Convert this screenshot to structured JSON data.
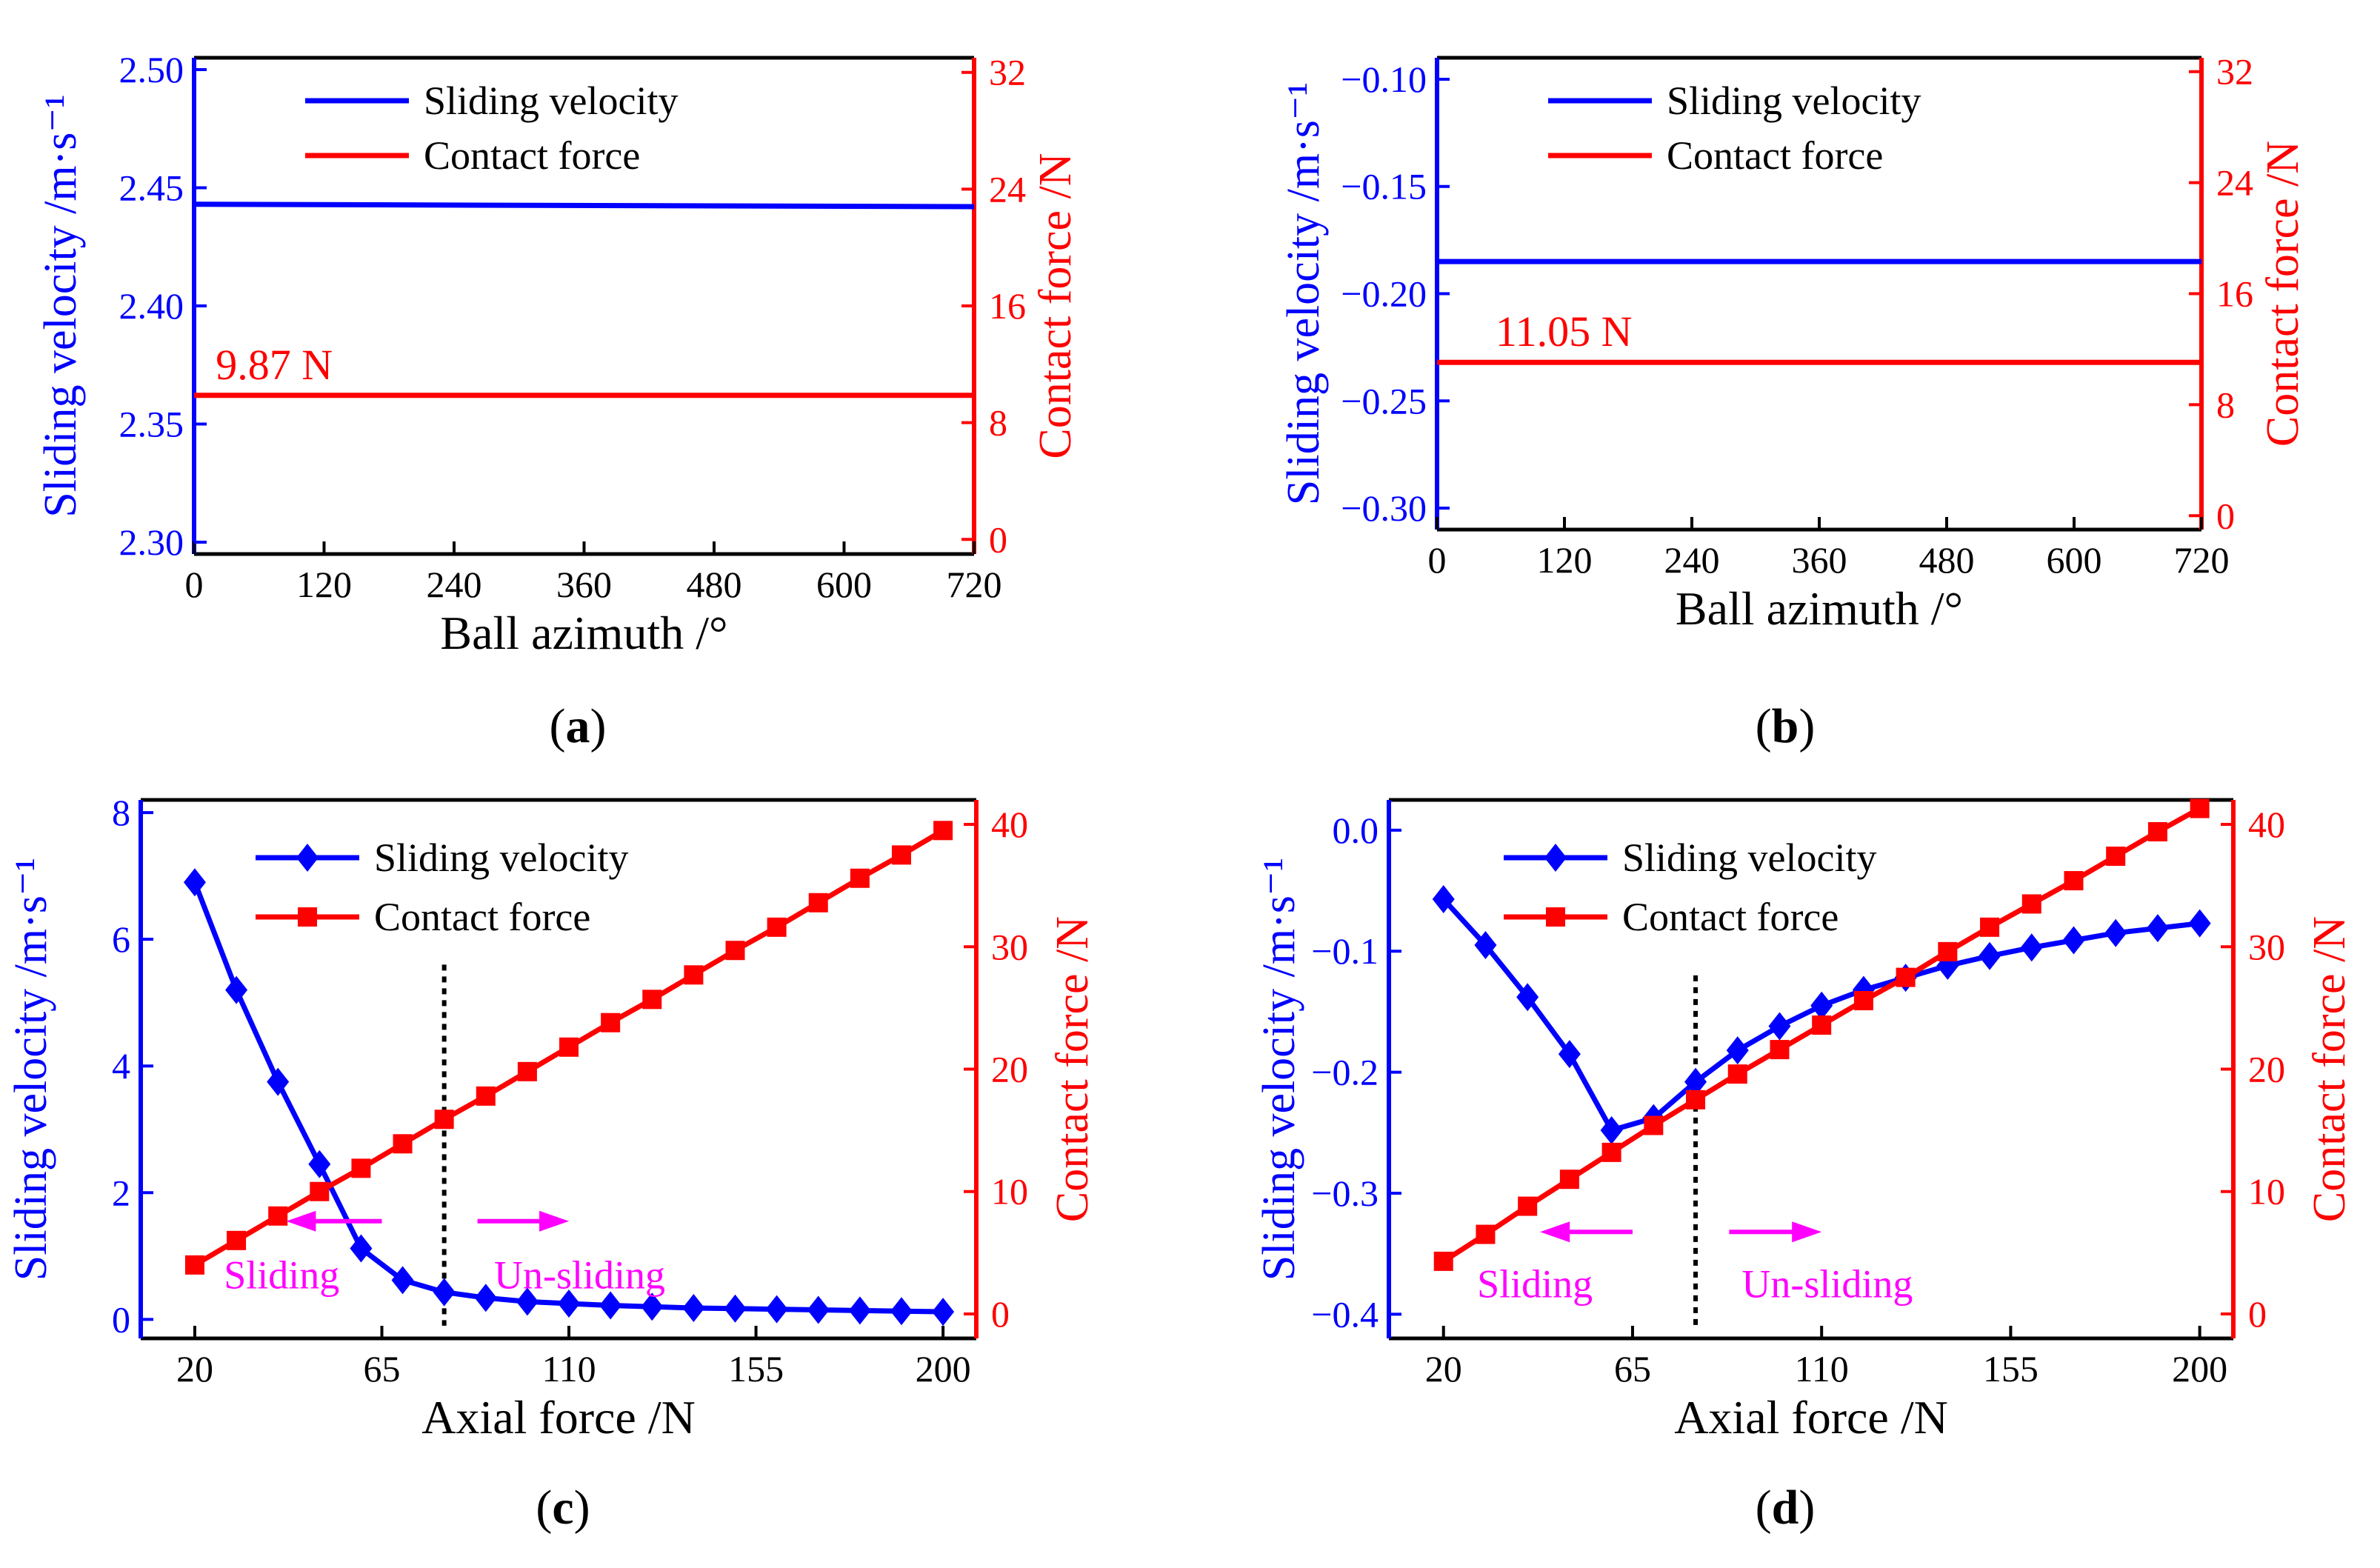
{
  "colors": {
    "blue": "#0000ff",
    "red": "#ff0000",
    "magenta": "#ff00ff",
    "black": "#000000"
  },
  "panel_labels": [
    "a",
    "b",
    "c",
    "d"
  ],
  "chart_data": [
    {
      "id": "a",
      "type": "line",
      "xlabel": "Ball azimuth /°",
      "ylabel_left": "Sliding velocity /m·s⁻¹",
      "ylabel_right": "Contact force /N",
      "xlim": [
        0,
        720
      ],
      "xticks": [
        0,
        120,
        240,
        360,
        480,
        600,
        720
      ],
      "ylim_left": [
        2.295,
        2.505
      ],
      "yticks_left": [
        2.3,
        2.35,
        2.4,
        2.45,
        2.5
      ],
      "ytick_decimals_left": 2,
      "ylim_right": [
        -1,
        33
      ],
      "yticks_right": [
        0,
        8,
        16,
        24,
        32
      ],
      "ytick_decimals_right": 0,
      "legend": [
        "Sliding velocity",
        "Contact force"
      ],
      "series": [
        {
          "name": "Sliding velocity",
          "axis": "left",
          "color": "blue",
          "markers": false,
          "x": [
            0,
            720
          ],
          "values": [
            2.443,
            2.442
          ]
        },
        {
          "name": "Contact force",
          "axis": "right",
          "color": "red",
          "markers": false,
          "x": [
            0,
            720
          ],
          "values": [
            9.87,
            9.87
          ]
        }
      ],
      "annotation": {
        "text": "9.87 N",
        "x": 20,
        "y": 9.87,
        "axis": "right",
        "color": "red"
      }
    },
    {
      "id": "b",
      "type": "line",
      "xlabel": "Ball azimuth /°",
      "ylabel_left": "Sliding velocity /m·s⁻¹",
      "ylabel_right": "Contact force /N",
      "xlim": [
        0,
        720
      ],
      "xticks": [
        0,
        120,
        240,
        360,
        480,
        600,
        720
      ],
      "ylim_left": [
        -0.31,
        -0.09
      ],
      "yticks_left": [
        -0.3,
        -0.25,
        -0.2,
        -0.15,
        -0.1
      ],
      "ytick_decimals_left": 2,
      "ylim_right": [
        -1,
        33
      ],
      "yticks_right": [
        0,
        8,
        16,
        24,
        32
      ],
      "ytick_decimals_right": 0,
      "legend": [
        "Sliding velocity",
        "Contact force"
      ],
      "series": [
        {
          "name": "Sliding velocity",
          "axis": "left",
          "color": "blue",
          "markers": false,
          "x": [
            0,
            720
          ],
          "values": [
            -0.185,
            -0.185
          ]
        },
        {
          "name": "Contact force",
          "axis": "right",
          "color": "red",
          "markers": false,
          "x": [
            0,
            720
          ],
          "values": [
            11.05,
            11.05
          ]
        }
      ],
      "annotation": {
        "text": "11.05 N",
        "x": 55,
        "y": 11.05,
        "axis": "right",
        "color": "red"
      }
    },
    {
      "id": "c",
      "type": "line",
      "xlabel": "Axial force /N",
      "ylabel_left": "Sliding velocity /m·s⁻¹",
      "ylabel_right": "Contact force /N",
      "xlim": [
        7,
        208
      ],
      "xticks": [
        20,
        65,
        110,
        155,
        200
      ],
      "ylim_left": [
        -0.3,
        8.2
      ],
      "yticks_left": [
        0,
        2,
        4,
        6,
        8
      ],
      "ytick_decimals_left": 0,
      "ylim_right": [
        -2,
        42
      ],
      "yticks_right": [
        0,
        10,
        20,
        30,
        40
      ],
      "ytick_decimals_right": 0,
      "legend": [
        "Sliding velocity",
        "Contact force"
      ],
      "series": [
        {
          "name": "Sliding velocity",
          "axis": "left",
          "color": "blue",
          "markers": "diamond",
          "x": [
            20,
            30,
            40,
            50,
            60,
            70,
            80,
            90,
            100,
            110,
            120,
            130,
            140,
            150,
            160,
            170,
            180,
            190,
            200
          ],
          "values": [
            6.9,
            5.2,
            3.75,
            2.45,
            1.12,
            0.62,
            0.43,
            0.34,
            0.28,
            0.25,
            0.22,
            0.2,
            0.18,
            0.17,
            0.16,
            0.15,
            0.14,
            0.13,
            0.12
          ]
        },
        {
          "name": "Contact force",
          "axis": "right",
          "color": "red",
          "markers": "square",
          "x": [
            20,
            30,
            40,
            50,
            60,
            70,
            80,
            90,
            100,
            110,
            120,
            130,
            140,
            150,
            160,
            170,
            180,
            190,
            200
          ],
          "values": [
            4.0,
            6.0,
            8.0,
            10.0,
            11.9,
            13.9,
            15.9,
            17.8,
            19.8,
            21.8,
            23.8,
            25.7,
            27.7,
            29.7,
            31.6,
            33.6,
            35.6,
            37.5,
            39.5
          ]
        }
      ],
      "divider_x": 80,
      "divider_y_range": [
        -0.1,
        5.6
      ],
      "arrows": [
        {
          "label": "Sliding",
          "direction": "left",
          "x_from": 65,
          "x_to": 42,
          "y": 1.55,
          "label_x": 27,
          "label_y": 0.7
        },
        {
          "label": "Un-sliding",
          "direction": "right",
          "x_from": 88,
          "x_to": 110,
          "y": 1.55,
          "label_x": 92,
          "label_y": 0.7
        }
      ]
    },
    {
      "id": "d",
      "type": "line",
      "xlabel": "Axial force /N",
      "ylabel_left": "Sliding velocity /m·s⁻¹",
      "ylabel_right": "Contact force /N",
      "xlim": [
        7,
        208
      ],
      "xticks": [
        20,
        65,
        110,
        155,
        200
      ],
      "ylim_left": [
        -0.42,
        0.025
      ],
      "yticks_left": [
        -0.4,
        -0.3,
        -0.2,
        -0.1,
        0.0
      ],
      "ytick_decimals_left": 1,
      "ylim_right": [
        -2,
        42
      ],
      "yticks_right": [
        0,
        10,
        20,
        30,
        40
      ],
      "ytick_decimals_right": 0,
      "legend": [
        "Sliding velocity",
        "Contact force"
      ],
      "series": [
        {
          "name": "Sliding velocity",
          "axis": "left",
          "color": "blue",
          "markers": "diamond",
          "x": [
            20,
            30,
            40,
            50,
            60,
            70,
            80,
            90,
            100,
            110,
            120,
            130,
            140,
            150,
            160,
            170,
            180,
            190,
            200
          ],
          "values": [
            -0.057,
            -0.095,
            -0.138,
            -0.185,
            -0.248,
            -0.238,
            -0.208,
            -0.182,
            -0.162,
            -0.145,
            -0.132,
            -0.122,
            -0.112,
            -0.104,
            -0.097,
            -0.091,
            -0.085,
            -0.081,
            -0.077
          ]
        },
        {
          "name": "Contact force",
          "axis": "right",
          "color": "red",
          "markers": "square",
          "x": [
            20,
            30,
            40,
            50,
            60,
            70,
            80,
            90,
            100,
            110,
            120,
            130,
            140,
            150,
            160,
            170,
            180,
            190,
            200
          ],
          "values": [
            4.3,
            6.5,
            8.8,
            11.0,
            13.2,
            15.4,
            17.5,
            19.6,
            21.6,
            23.6,
            25.6,
            27.5,
            29.6,
            31.6,
            33.5,
            35.4,
            37.4,
            39.4,
            41.3
          ]
        }
      ],
      "divider_x": 80,
      "divider_y_range": [
        -0.41,
        -0.12
      ],
      "arrows": [
        {
          "label": "Sliding",
          "direction": "left",
          "x_from": 65,
          "x_to": 43,
          "y": -0.332,
          "label_x": 28,
          "label_y": -0.375
        },
        {
          "label": "Un-sliding",
          "direction": "right",
          "x_from": 88,
          "x_to": 110,
          "y": -0.332,
          "label_x": 91,
          "label_y": -0.375
        }
      ]
    }
  ]
}
